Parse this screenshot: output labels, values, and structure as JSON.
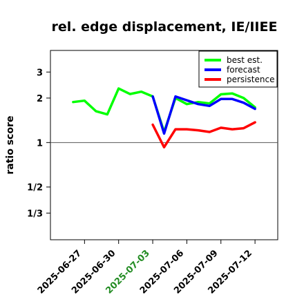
{
  "chart_data": {
    "type": "line",
    "title": "rel. edge displacement, IE/IIEE",
    "xlabel": "",
    "ylabel": "ratio score",
    "y_scale": "log2",
    "ylim": [
      0.22,
      4.2
    ],
    "y_ticks": [
      {
        "value": 3,
        "label": "3"
      },
      {
        "value": 2,
        "label": "2"
      },
      {
        "value": 1,
        "label": "1"
      },
      {
        "value": 0.5,
        "label": "1/2"
      },
      {
        "value": 0.3333,
        "label": "1/3"
      }
    ],
    "reference_line": 1,
    "x_ticks": [
      {
        "date": "2025-06-27",
        "label": "2025-06-27",
        "color": "#000000"
      },
      {
        "date": "2025-06-30",
        "label": "2025-06-30",
        "color": "#000000"
      },
      {
        "date": "2025-07-03",
        "label": "2025-07-03",
        "color": "#228B22"
      },
      {
        "date": "2025-07-06",
        "label": "2025-07-06",
        "color": "#000000"
      },
      {
        "date": "2025-07-09",
        "label": "2025-07-09",
        "color": "#000000"
      },
      {
        "date": "2025-07-12",
        "label": "2025-07-12",
        "color": "#000000"
      }
    ],
    "xlim": [
      "2025-06-24",
      "2025-07-14"
    ],
    "grid": false,
    "legend_position": "top-right",
    "series": [
      {
        "name": "best est.",
        "color": "#00ff00",
        "points": [
          [
            "2025-06-26",
            1.88
          ],
          [
            "2025-06-27",
            1.92
          ],
          [
            "2025-06-28",
            1.63
          ],
          [
            "2025-06-29",
            1.55
          ],
          [
            "2025-06-30",
            2.32
          ],
          [
            "2025-07-01",
            2.13
          ],
          [
            "2025-07-02",
            2.21
          ],
          [
            "2025-07-03",
            2.05
          ],
          [
            "2025-07-04",
            1.18
          ],
          [
            "2025-07-05",
            2.0
          ],
          [
            "2025-07-06",
            1.82
          ],
          [
            "2025-07-07",
            1.88
          ],
          [
            "2025-07-08",
            1.84
          ],
          [
            "2025-07-09",
            2.12
          ],
          [
            "2025-07-10",
            2.15
          ],
          [
            "2025-07-11",
            2.0
          ],
          [
            "2025-07-12",
            1.73
          ]
        ]
      },
      {
        "name": "forecast",
        "color": "#0000ff",
        "points": [
          [
            "2025-07-03",
            2.05
          ],
          [
            "2025-07-04",
            1.15
          ],
          [
            "2025-07-05",
            2.05
          ],
          [
            "2025-07-06",
            1.93
          ],
          [
            "2025-07-07",
            1.82
          ],
          [
            "2025-07-08",
            1.77
          ],
          [
            "2025-07-09",
            1.97
          ],
          [
            "2025-07-10",
            1.97
          ],
          [
            "2025-07-11",
            1.86
          ],
          [
            "2025-07-12",
            1.69
          ]
        ]
      },
      {
        "name": "persistence",
        "color": "#ff0000",
        "points": [
          [
            "2025-07-03",
            1.32
          ],
          [
            "2025-07-04",
            0.93
          ],
          [
            "2025-07-05",
            1.23
          ],
          [
            "2025-07-06",
            1.23
          ],
          [
            "2025-07-07",
            1.21
          ],
          [
            "2025-07-08",
            1.18
          ],
          [
            "2025-07-09",
            1.26
          ],
          [
            "2025-07-10",
            1.23
          ],
          [
            "2025-07-11",
            1.25
          ],
          [
            "2025-07-12",
            1.37
          ]
        ]
      }
    ]
  }
}
